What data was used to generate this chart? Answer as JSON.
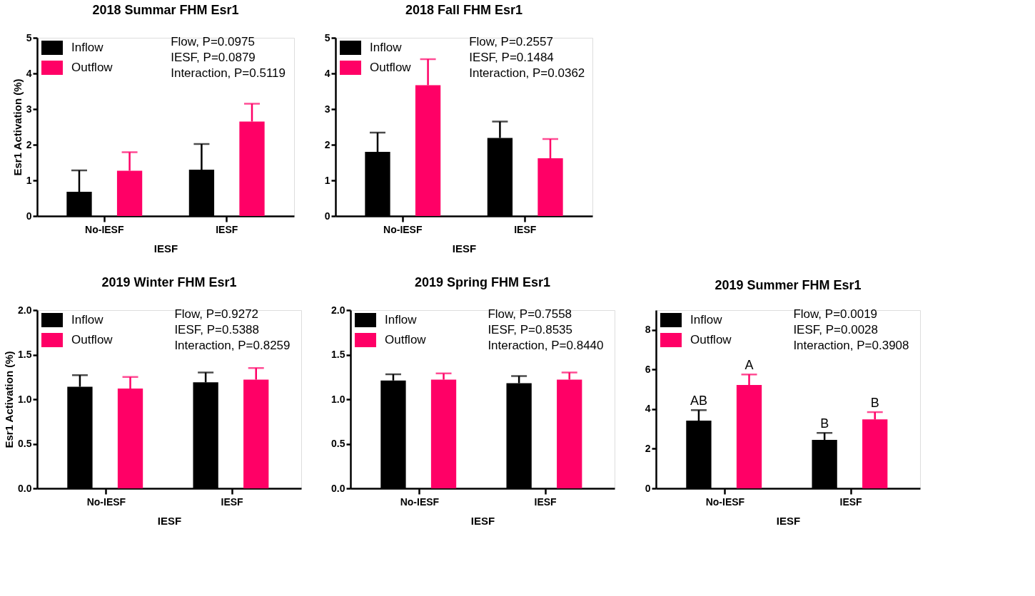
{
  "chart_data": [
    {
      "type": "bar",
      "title": "2018 Summar FHM Esr1",
      "xlabel": "IESF",
      "ylabel": "Esr1 Activation (%)",
      "categories": [
        "No-IESF",
        "IESF"
      ],
      "ylim": [
        0,
        5
      ],
      "yticks": [
        0,
        1,
        2,
        3,
        4,
        5
      ],
      "legend": "top left",
      "series": [
        {
          "name": "Inflow",
          "color": "#000000",
          "values": [
            0.68,
            1.3
          ],
          "errors": [
            [
              0.68,
              1.28
            ],
            [
              1.3,
              2.02
            ]
          ]
        },
        {
          "name": "Outflow",
          "color": "#ff0066",
          "values": [
            1.27,
            2.65
          ],
          "errors": [
            [
              1.27,
              1.79
            ],
            [
              2.65,
              3.15
            ]
          ]
        }
      ],
      "annotations": [
        "Flow, P=0.0975",
        "IESF, P=0.0879",
        "Interaction, P=0.5119"
      ]
    },
    {
      "type": "bar",
      "title": "2018 Fall FHM Esr1",
      "xlabel": "IESF",
      "categories": [
        "No-IESF",
        "IESF"
      ],
      "ylim": [
        0,
        5
      ],
      "yticks": [
        0,
        1,
        2,
        3,
        4,
        5
      ],
      "legend": "top left",
      "series": [
        {
          "name": "Inflow",
          "color": "#000000",
          "values": [
            1.8,
            2.19
          ],
          "errors": [
            [
              1.8,
              2.34
            ],
            [
              2.19,
              2.65
            ]
          ]
        },
        {
          "name": "Outflow",
          "color": "#ff0066",
          "values": [
            3.67,
            1.62
          ],
          "errors": [
            [
              3.67,
              4.4
            ],
            [
              1.62,
              2.16
            ]
          ]
        }
      ],
      "annotations": [
        "Flow, P=0.2557",
        "IESF, P=0.1484",
        "Interaction, P=0.0362"
      ]
    },
    {
      "type": "bar",
      "title": "2019 Winter FHM Esr1",
      "xlabel": "IESF",
      "ylabel": "Esr1 Activation (%)",
      "categories": [
        "No-IESF",
        "IESF"
      ],
      "ylim": [
        0,
        2
      ],
      "yticks": [
        {
          "value": 0,
          "label": "0.0"
        },
        0.5,
        {
          "value": 1,
          "label": "1.0"
        },
        1.5,
        {
          "value": 2,
          "label": "2.0"
        }
      ],
      "legend": "top left",
      "series": [
        {
          "name": "Inflow",
          "color": "#000000",
          "values": [
            1.14,
            1.19
          ],
          "errors": [
            [
              1.14,
              1.27
            ],
            [
              1.19,
              1.3
            ]
          ]
        },
        {
          "name": "Outflow",
          "color": "#ff0066",
          "values": [
            1.12,
            1.22
          ],
          "errors": [
            [
              1.12,
              1.25
            ],
            [
              1.22,
              1.35
            ]
          ]
        }
      ],
      "annotations": [
        "Flow, P=0.9272",
        "IESF, P=0.5388",
        "Interaction, P=0.8259"
      ]
    },
    {
      "type": "bar",
      "title": "2019 Spring FHM Esr1",
      "xlabel": "IESF",
      "categories": [
        "No-IESF",
        "IESF"
      ],
      "ylim": [
        0,
        2
      ],
      "yticks": [
        {
          "value": 0,
          "label": "0.0"
        },
        0.5,
        {
          "value": 1,
          "label": "1.0"
        },
        1.5,
        {
          "value": 2,
          "label": "2.0"
        }
      ],
      "legend": "top left",
      "series": [
        {
          "name": "Inflow",
          "color": "#000000",
          "values": [
            1.21,
            1.18
          ],
          "errors": [
            [
              1.21,
              1.28
            ],
            [
              1.18,
              1.26
            ]
          ]
        },
        {
          "name": "Outflow",
          "color": "#ff0066",
          "values": [
            1.22,
            1.22
          ],
          "errors": [
            [
              1.22,
              1.29
            ],
            [
              1.22,
              1.3
            ]
          ]
        }
      ],
      "annotations": [
        "Flow, P=0.7558",
        "IESF, P=0.8535",
        "Interaction, P=0.8440"
      ]
    },
    {
      "type": "bar",
      "title": "2019 Summer FHM Esr1",
      "xlabel": "IESF",
      "categories": [
        "No-IESF",
        "IESF"
      ],
      "ylim": [
        0,
        9
      ],
      "yticks": [
        0,
        2,
        4,
        6,
        8
      ],
      "legend": "top left",
      "series": [
        {
          "name": "Inflow",
          "color": "#000000",
          "values": [
            3.42,
            2.45
          ],
          "errors": [
            [
              3.42,
              3.95
            ],
            [
              2.45,
              2.8
            ]
          ],
          "value_labels": [
            "AB",
            "B"
          ]
        },
        {
          "name": "Outflow",
          "color": "#ff0066",
          "values": [
            5.22,
            3.48
          ],
          "errors": [
            [
              5.22,
              5.75
            ],
            [
              3.48,
              3.85
            ]
          ],
          "value_labels": [
            "A",
            "B"
          ]
        }
      ],
      "annotations": [
        "Flow, P=0.0019",
        "IESF, P=0.0028",
        "Interaction, P=0.3908"
      ]
    }
  ]
}
